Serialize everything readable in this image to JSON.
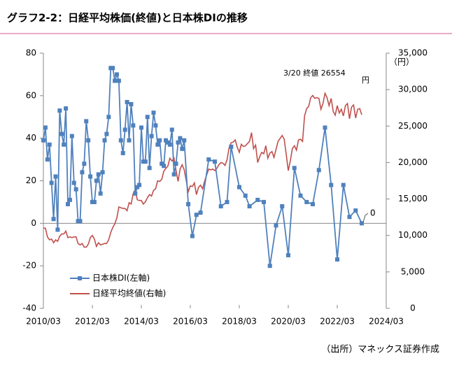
{
  "chart_data": {
    "type": "line",
    "title": "グラフ2-2：日経平均株価(終値)と日本株DIの推移",
    "source": "（出所）マネックス証券作成",
    "y2_unit": "（円）",
    "annotations": [
      "3/20 終値 26554",
      "円",
      "0"
    ],
    "xlim": [
      "2010/03",
      "2024/03"
    ],
    "xticks": [
      "2010/03",
      "2012/03",
      "2014/03",
      "2016/03",
      "2018/03",
      "2020/03",
      "2022/03",
      "2024/03"
    ],
    "ylim": [
      -40,
      80
    ],
    "yticks": [
      -40,
      -20,
      0,
      20,
      40,
      60,
      80
    ],
    "y2lim": [
      0,
      35000
    ],
    "y2ticks": [
      0,
      {
        "value": 5000,
        "label": "5,000"
      },
      {
        "value": 10000,
        "label": "10,000"
      },
      {
        "value": 15000,
        "label": "15,000"
      },
      {
        "value": 20000,
        "label": "20,000"
      },
      {
        "value": 25000,
        "label": "25,000"
      },
      {
        "value": 30000,
        "label": "30,000"
      },
      {
        "value": 35000,
        "label": "35,000"
      }
    ],
    "grid": false,
    "legend": "lower left",
    "series": [
      {
        "name": "日本株DI(左軸)",
        "color": "#4f81bd",
        "marker": "square",
        "x": [
          "2010/03",
          "2010/04",
          "2010/05",
          "2010/06",
          "2010/07",
          "2010/08",
          "2010/09",
          "2010/10",
          "2010/11",
          "2010/12",
          "2011/01",
          "2011/02",
          "2011/03",
          "2011/04",
          "2011/05",
          "2011/06",
          "2011/07",
          "2011/08",
          "2011/09",
          "2011/10",
          "2011/11",
          "2011/12",
          "2012/01",
          "2012/02",
          "2012/03",
          "2012/04",
          "2012/05",
          "2012/06",
          "2012/07",
          "2012/08",
          "2012/09",
          "2012/10",
          "2012/11",
          "2012/12",
          "2013/01",
          "2013/02",
          "2013/03",
          "2013/04",
          "2013/05",
          "2013/06",
          "2013/07",
          "2013/08",
          "2013/09",
          "2013/10",
          "2013/11",
          "2013/12",
          "2014/01",
          "2014/02",
          "2014/03",
          "2014/04",
          "2014/05",
          "2014/06",
          "2014/07",
          "2014/08",
          "2014/09",
          "2014/10",
          "2014/11",
          "2014/12",
          "2015/01",
          "2015/02",
          "2015/03",
          "2015/04",
          "2015/05",
          "2015/06",
          "2015/07",
          "2015/08",
          "2015/09",
          "2015/10",
          "2015/11",
          "2015/12",
          "2016/02",
          "2016/04",
          "2016/06",
          "2016/08",
          "2016/12",
          "2017/03",
          "2017/06",
          "2017/09",
          "2017/11",
          "2018/03",
          "2018/06",
          "2018/08",
          "2018/12",
          "2019/03",
          "2019/06",
          "2019/09",
          "2019/12",
          "2020/03",
          "2020/06",
          "2020/09",
          "2020/12",
          "2021/03",
          "2021/06",
          "2021/09",
          "2021/12",
          "2022/03",
          "2022/06",
          "2022/09",
          "2022/12",
          "2023/03"
        ],
        "values": [
          39,
          45,
          30,
          37,
          19,
          2,
          22,
          -3,
          53,
          42,
          37,
          54,
          9,
          11,
          41,
          19,
          16,
          1,
          1,
          24,
          28,
          48,
          39,
          22,
          10,
          10,
          20,
          23,
          14,
          24,
          39,
          42,
          50,
          73,
          73,
          67,
          70,
          67,
          39,
          33,
          44,
          57,
          39,
          56,
          46,
          14,
          17,
          18,
          45,
          29,
          29,
          50,
          26,
          41,
          52,
          46,
          37,
          39,
          28,
          27,
          39,
          38,
          37,
          44,
          23,
          28,
          38,
          40,
          35,
          39,
          9,
          -6,
          4,
          5,
          30,
          29,
          8,
          10,
          36,
          17,
          13,
          8,
          11,
          10,
          -20,
          -1,
          8,
          -15,
          26,
          13,
          10,
          9,
          25,
          45,
          18,
          -17,
          18,
          3,
          6,
          0
        ]
      },
      {
        "name": "日経平均終値(右軸)",
        "color": "#c0504d",
        "axis": "y2",
        "x": [
          "2010/03",
          "2010/04",
          "2010/05",
          "2010/06",
          "2010/07",
          "2010/08",
          "2010/09",
          "2010/10",
          "2010/11",
          "2010/12",
          "2011/01",
          "2011/02",
          "2011/03",
          "2011/04",
          "2011/05",
          "2011/06",
          "2011/07",
          "2011/08",
          "2011/09",
          "2011/10",
          "2011/11",
          "2011/12",
          "2012/01",
          "2012/02",
          "2012/03",
          "2012/04",
          "2012/05",
          "2012/06",
          "2012/07",
          "2012/08",
          "2012/09",
          "2012/10",
          "2012/11",
          "2012/12",
          "2013/01",
          "2013/02",
          "2013/03",
          "2013/04",
          "2013/05",
          "2013/06",
          "2013/07",
          "2013/08",
          "2013/09",
          "2013/10",
          "2013/11",
          "2013/12",
          "2014/01",
          "2014/02",
          "2014/03",
          "2014/04",
          "2014/05",
          "2014/06",
          "2014/07",
          "2014/08",
          "2014/09",
          "2014/10",
          "2014/11",
          "2014/12",
          "2015/01",
          "2015/02",
          "2015/03",
          "2015/04",
          "2015/05",
          "2015/06",
          "2015/07",
          "2015/08",
          "2015/09",
          "2015/10",
          "2015/11",
          "2015/12",
          "2016/01",
          "2016/02",
          "2016/03",
          "2016/04",
          "2016/05",
          "2016/06",
          "2016/07",
          "2016/08",
          "2016/09",
          "2016/10",
          "2016/11",
          "2016/12",
          "2017/01",
          "2017/02",
          "2017/03",
          "2017/04",
          "2017/05",
          "2017/06",
          "2017/07",
          "2017/08",
          "2017/09",
          "2017/10",
          "2017/11",
          "2017/12",
          "2018/01",
          "2018/02",
          "2018/03",
          "2018/04",
          "2018/05",
          "2018/06",
          "2018/07",
          "2018/08",
          "2018/09",
          "2018/10",
          "2018/11",
          "2018/12",
          "2019/01",
          "2019/02",
          "2019/03",
          "2019/04",
          "2019/05",
          "2019/06",
          "2019/07",
          "2019/08",
          "2019/09",
          "2019/10",
          "2019/11",
          "2019/12",
          "2020/01",
          "2020/02",
          "2020/03",
          "2020/04",
          "2020/05",
          "2020/06",
          "2020/07",
          "2020/08",
          "2020/09",
          "2020/10",
          "2020/11",
          "2020/12",
          "2021/01",
          "2021/02",
          "2021/03",
          "2021/04",
          "2021/05",
          "2021/06",
          "2021/07",
          "2021/08",
          "2021/09",
          "2021/10",
          "2021/11",
          "2021/12",
          "2022/01",
          "2022/02",
          "2022/03",
          "2022/04",
          "2022/05",
          "2022/06",
          "2022/07",
          "2022/08",
          "2022/09",
          "2022/10",
          "2022/11",
          "2022/12",
          "2023/01",
          "2023/02",
          "2023/03"
        ],
        "values": [
          11000,
          11000,
          9800,
          9400,
          9500,
          9000,
          9400,
          9200,
          9900,
          10200,
          10200,
          10600,
          9700,
          9800,
          9700,
          9800,
          9800,
          8900,
          8700,
          8900,
          8400,
          8400,
          8800,
          9700,
          10000,
          9500,
          8500,
          9000,
          8700,
          8800,
          8900,
          8900,
          9400,
          10400,
          11100,
          11600,
          12400,
          13900,
          13800,
          13700,
          13700,
          13400,
          14500,
          14300,
          15700,
          16300,
          14900,
          14800,
          14800,
          14300,
          14600,
          15200,
          15600,
          15400,
          16200,
          16400,
          17500,
          17400,
          17700,
          18800,
          19200,
          19500,
          20600,
          20200,
          20600,
          18900,
          17400,
          19100,
          19700,
          19000,
          17500,
          16000,
          16800,
          16700,
          17200,
          15600,
          16600,
          16900,
          16400,
          17400,
          18300,
          19100,
          19000,
          19100,
          18900,
          19200,
          19700,
          20000,
          19900,
          19600,
          20400,
          22000,
          22700,
          22800,
          23100,
          22100,
          21400,
          22500,
          22200,
          22300,
          22600,
          22900,
          24100,
          21900,
          22400,
          20000,
          20800,
          21400,
          21200,
          22300,
          20600,
          21300,
          21500,
          20700,
          21800,
          22900,
          23300,
          23700,
          23200,
          21100,
          18900,
          20200,
          21900,
          22300,
          21700,
          23100,
          23200,
          22900,
          26400,
          27400,
          27700,
          28900,
          29200,
          28800,
          28900,
          28800,
          27300,
          28100,
          29500,
          28900,
          27800,
          28800,
          27000,
          26500,
          27800,
          26800,
          27300,
          26400,
          27800,
          28100,
          26000,
          27600,
          27900,
          26100,
          27300,
          27400,
          26554
        ]
      }
    ]
  }
}
